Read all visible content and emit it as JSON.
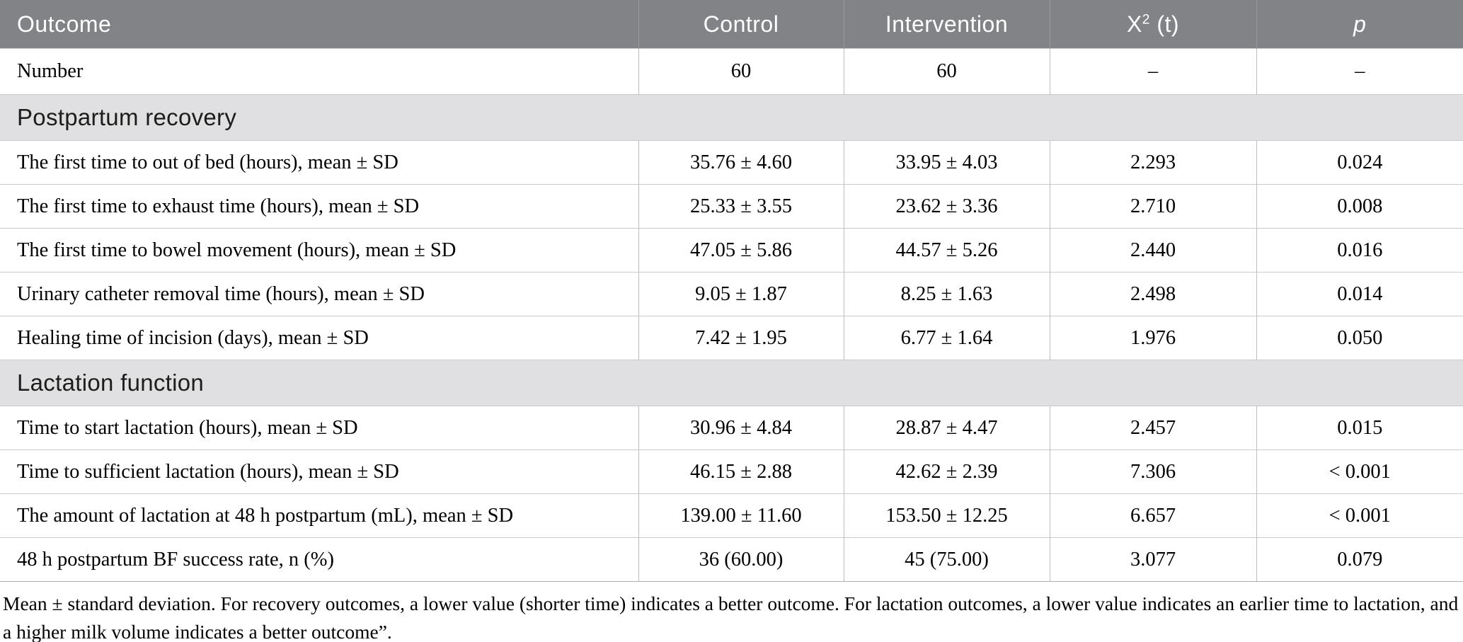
{
  "colors": {
    "header_bg": "#828386",
    "header_text": "#ffffff",
    "section_bg": "#e0dfe1",
    "row_border": "#c9c9c9",
    "column_border": "#bdbdbd",
    "page_bg": "#ffffff"
  },
  "table": {
    "header": {
      "outcome": "Outcome",
      "control": "Control",
      "intervention": "Intervention",
      "statistic_base": "X",
      "statistic_sup": "2",
      "statistic_rest": " (t)",
      "p": "p"
    },
    "number_row": {
      "label": "Number",
      "control": "60",
      "intervention": "60",
      "statistic": "–",
      "p": "–"
    },
    "sections": [
      {
        "title": "Postpartum recovery",
        "rows": [
          {
            "label": "The first time to out of bed (hours), mean ± SD",
            "control": "35.76 ± 4.60",
            "intervention": "33.95 ± 4.03",
            "statistic": "2.293",
            "p": "0.024"
          },
          {
            "label": "The first time to exhaust time (hours), mean ± SD",
            "control": "25.33 ± 3.55",
            "intervention": "23.62 ± 3.36",
            "statistic": "2.710",
            "p": "0.008"
          },
          {
            "label": "The first time to bowel movement (hours), mean ± SD",
            "control": "47.05 ± 5.86",
            "intervention": "44.57 ± 5.26",
            "statistic": "2.440",
            "p": "0.016"
          },
          {
            "label": "Urinary catheter removal time (hours), mean ± SD",
            "control": "9.05 ± 1.87",
            "intervention": "8.25 ± 1.63",
            "statistic": "2.498",
            "p": "0.014"
          },
          {
            "label": "Healing time of incision (days), mean ± SD",
            "control": "7.42 ± 1.95",
            "intervention": "6.77 ± 1.64",
            "statistic": "1.976",
            "p": "0.050"
          }
        ]
      },
      {
        "title": "Lactation function",
        "rows": [
          {
            "label": "Time to start lactation (hours), mean ± SD",
            "control": "30.96 ± 4.84",
            "intervention": "28.87 ± 4.47",
            "statistic": "2.457",
            "p": "0.015"
          },
          {
            "label": "Time to sufficient lactation (hours), mean ± SD",
            "control": "46.15 ± 2.88",
            "intervention": "42.62 ± 2.39",
            "statistic": "7.306",
            "p": "< 0.001"
          },
          {
            "label": "The amount of lactation at 48 h postpartum (mL), mean ± SD",
            "control": "139.00 ± 11.60",
            "intervention": "153.50 ± 12.25",
            "statistic": "6.657",
            "p": "< 0.001"
          },
          {
            "label": "48 h postpartum BF success rate, n (%)",
            "control": "36 (60.00)",
            "intervention": "45 (75.00)",
            "statistic": "3.077",
            "p": "0.079"
          }
        ]
      }
    ]
  },
  "footnote": "Mean ± standard deviation. For recovery outcomes, a lower value (shorter time) indicates a better outcome. For lactation outcomes, a lower value indicates an earlier time to lactation, and a higher milk volume indicates a better outcome”."
}
